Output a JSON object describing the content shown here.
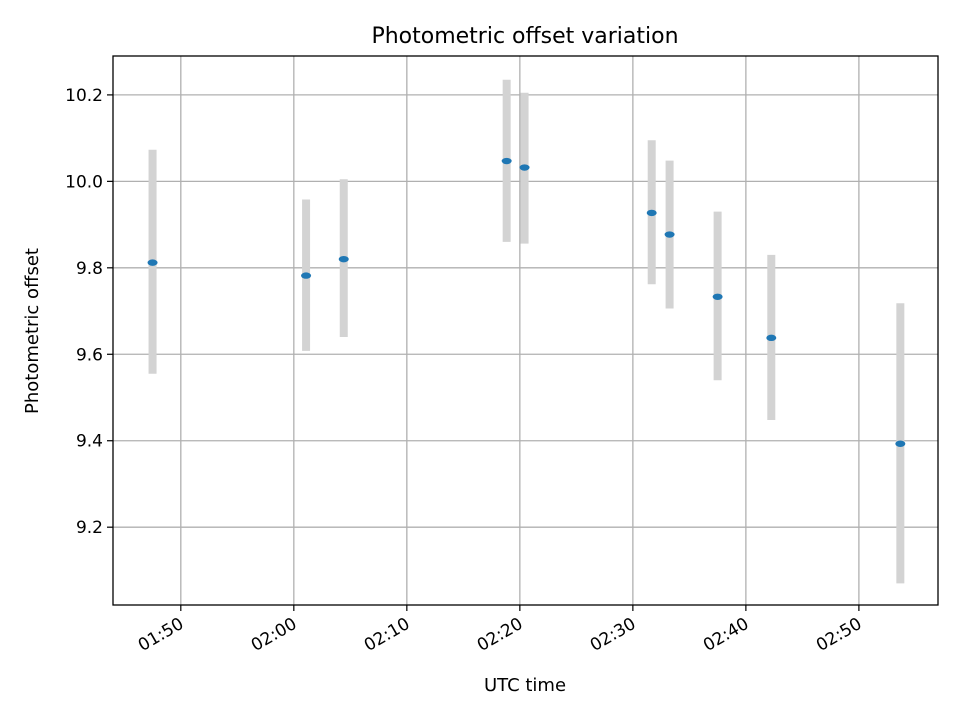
{
  "chart_data": {
    "type": "scatter",
    "title": "Photometric offset variation",
    "xlabel": "UTC time",
    "ylabel": "Photometric offset",
    "x_unit": "minutes after 01:00 UTC",
    "xlim": [
      "01:44",
      "02:57"
    ],
    "ylim": [
      9.02,
      10.29
    ],
    "x_ticks": [
      "01:50",
      "02:00",
      "02:10",
      "02:20",
      "02:30",
      "02:40",
      "02:50"
    ],
    "y_ticks": [
      "9.2",
      "9.4",
      "9.6",
      "9.8",
      "10.0",
      "10.2"
    ],
    "grid": true,
    "series": [
      {
        "marker_color": "#1f77b4",
        "errorbar_color": "#d3d3d3",
        "points": [
          {
            "x": "01:47:30",
            "y": 9.812,
            "y_low": 9.555,
            "y_high": 10.073
          },
          {
            "x": "02:01:05",
            "y": 9.782,
            "y_low": 9.608,
            "y_high": 9.958
          },
          {
            "x": "02:04:25",
            "y": 9.82,
            "y_low": 9.64,
            "y_high": 10.005
          },
          {
            "x": "02:18:50",
            "y": 10.047,
            "y_low": 9.86,
            "y_high": 10.235
          },
          {
            "x": "02:20:25",
            "y": 10.032,
            "y_low": 9.856,
            "y_high": 10.205
          },
          {
            "x": "02:31:40",
            "y": 9.927,
            "y_low": 9.762,
            "y_high": 10.095
          },
          {
            "x": "02:33:15",
            "y": 9.877,
            "y_low": 9.706,
            "y_high": 10.048
          },
          {
            "x": "02:37:30",
            "y": 9.733,
            "y_low": 9.54,
            "y_high": 9.93
          },
          {
            "x": "02:42:15",
            "y": 9.638,
            "y_low": 9.448,
            "y_high": 9.83
          },
          {
            "x": "02:53:40",
            "y": 9.393,
            "y_low": 9.07,
            "y_high": 9.718
          }
        ]
      }
    ]
  }
}
